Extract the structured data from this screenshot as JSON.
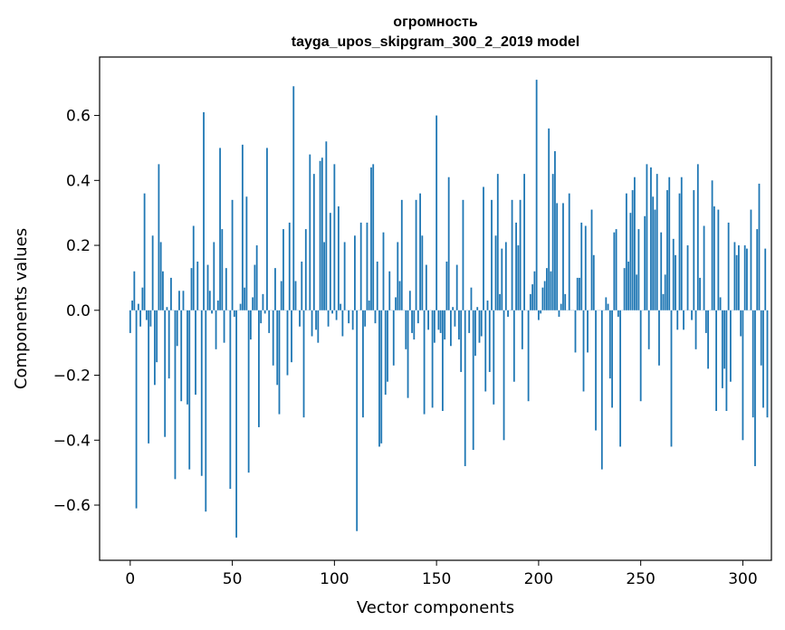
{
  "chart_data": {
    "type": "bar",
    "title": "огромность",
    "subtitle": "tayga_upos_skipgram_300_2_2019 model",
    "xlabel": "Vector components",
    "ylabel": "Components values",
    "xlim": [
      -15,
      314
    ],
    "ylim": [
      -0.77,
      0.78
    ],
    "xticks": [
      0,
      50,
      100,
      150,
      200,
      250,
      300
    ],
    "yticks": [
      -0.6,
      -0.4,
      -0.2,
      0.0,
      0.2,
      0.4,
      0.6
    ],
    "xtick_labels": [
      "0",
      "50",
      "100",
      "150",
      "200",
      "250",
      "300"
    ],
    "ytick_labels": [
      "−0.6",
      "−0.4",
      "−0.2",
      "0.0",
      "0.2",
      "0.4",
      "0.6"
    ],
    "bar_color": "#1f77b4",
    "grid": false,
    "legend": "none",
    "values": [
      -0.07,
      0.03,
      0.12,
      -0.61,
      0.02,
      -0.05,
      0.07,
      0.36,
      -0.03,
      -0.41,
      -0.05,
      0.23,
      -0.23,
      -0.16,
      0.45,
      0.21,
      0.12,
      -0.39,
      0.01,
      -0.21,
      0.1,
      0.0,
      -0.52,
      -0.11,
      0.06,
      -0.28,
      0.06,
      0.0,
      -0.29,
      -0.49,
      0.13,
      0.26,
      -0.26,
      0.15,
      0.0,
      -0.51,
      0.61,
      -0.62,
      0.14,
      0.06,
      -0.01,
      0.21,
      -0.12,
      0.03,
      0.5,
      0.25,
      -0.1,
      0.13,
      0.0,
      -0.55,
      0.34,
      -0.02,
      -0.7,
      0.0,
      0.02,
      0.51,
      0.07,
      0.35,
      -0.5,
      -0.09,
      0.04,
      0.14,
      0.2,
      -0.36,
      -0.04,
      0.05,
      -0.01,
      0.5,
      -0.07,
      0.0,
      -0.17,
      0.13,
      -0.23,
      -0.32,
      0.09,
      0.25,
      0.0,
      -0.2,
      0.27,
      -0.16,
      0.69,
      0.09,
      0.0,
      -0.05,
      0.15,
      -0.33,
      0.25,
      0.0,
      0.48,
      -0.08,
      0.42,
      -0.06,
      -0.1,
      0.46,
      0.47,
      0.21,
      0.52,
      -0.05,
      0.3,
      -0.01,
      0.45,
      -0.03,
      0.32,
      0.02,
      -0.08,
      0.21,
      0.0,
      -0.04,
      0.0,
      -0.06,
      0.23,
      -0.68,
      0.0,
      0.27,
      -0.33,
      -0.05,
      0.27,
      0.03,
      0.44,
      0.45,
      -0.04,
      0.15,
      -0.42,
      -0.41,
      0.24,
      -0.26,
      -0.22,
      0.12,
      0.0,
      -0.17,
      0.04,
      0.21,
      0.09,
      0.34,
      0.0,
      -0.12,
      -0.27,
      0.06,
      -0.07,
      -0.09,
      0.34,
      -0.04,
      0.36,
      0.23,
      -0.32,
      0.14,
      -0.06,
      0.0,
      -0.3,
      -0.1,
      0.6,
      -0.06,
      -0.07,
      -0.31,
      -0.09,
      0.15,
      0.41,
      -0.11,
      0.01,
      -0.05,
      0.14,
      -0.09,
      -0.19,
      0.34,
      -0.48,
      0.0,
      -0.07,
      0.07,
      -0.43,
      -0.14,
      0.01,
      -0.1,
      -0.08,
      0.38,
      -0.25,
      0.03,
      -0.19,
      0.34,
      -0.29,
      0.23,
      0.42,
      0.05,
      0.19,
      -0.4,
      0.21,
      -0.02,
      0.0,
      0.34,
      -0.22,
      0.27,
      0.2,
      0.34,
      -0.12,
      0.42,
      0.0,
      -0.28,
      0.05,
      0.08,
      0.12,
      0.71,
      -0.03,
      -0.01,
      0.07,
      0.09,
      0.13,
      0.56,
      0.12,
      0.42,
      0.49,
      0.33,
      -0.02,
      0.02,
      0.33,
      0.05,
      0.0,
      0.36,
      0.0,
      0.0,
      -0.13,
      0.1,
      0.1,
      0.27,
      -0.25,
      0.26,
      -0.13,
      0.0,
      0.31,
      0.17,
      -0.37,
      0.0,
      0.0,
      -0.49,
      0.0,
      0.04,
      0.02,
      -0.21,
      -0.3,
      0.24,
      0.25,
      -0.02,
      -0.42,
      0.0,
      0.13,
      0.36,
      0.15,
      0.3,
      0.37,
      0.41,
      0.11,
      0.25,
      -0.28,
      0.0,
      0.29,
      0.45,
      -0.12,
      0.44,
      0.35,
      0.31,
      0.42,
      -0.17,
      0.24,
      0.05,
      0.11,
      0.37,
      0.41,
      -0.42,
      0.22,
      0.17,
      -0.06,
      0.36,
      0.41,
      -0.06,
      0.0,
      0.2,
      0.0,
      -0.03,
      0.37,
      -0.12,
      0.45,
      0.1,
      0.0,
      0.26,
      -0.07,
      -0.18,
      0.0,
      0.4,
      0.32,
      -0.31,
      0.31,
      0.04,
      -0.24,
      -0.18,
      -0.31,
      0.27,
      -0.22,
      0.0,
      0.21,
      0.17,
      0.2,
      -0.08,
      -0.4,
      0.2,
      0.19,
      0.0,
      0.31,
      -0.33,
      -0.48,
      0.25,
      0.39,
      -0.17,
      -0.3,
      0.19,
      -0.33
    ]
  }
}
